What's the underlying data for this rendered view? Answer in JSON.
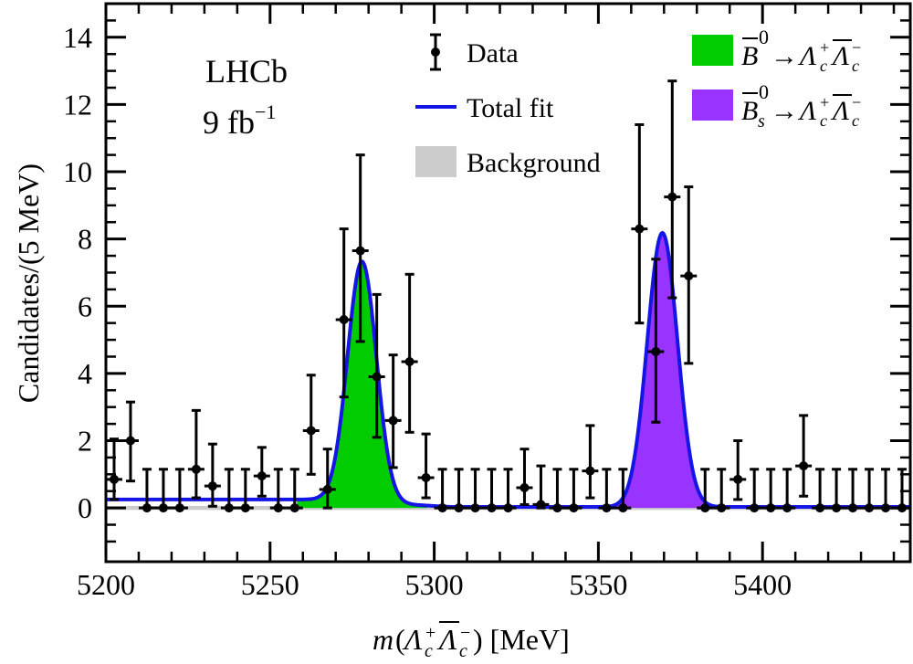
{
  "chart_data": {
    "type": "scatter",
    "experiment_label": "LHCb",
    "luminosity_label": {
      "value": "9 fb",
      "sup": "−1"
    },
    "xlabel": {
      "pre": "m(",
      "mid": "Λ",
      "post": ") [MeV]"
    },
    "ylabel": "Candidates/(5 MeV)",
    "xlim": [
      5200,
      5445
    ],
    "ylim": [
      -1.6,
      15
    ],
    "x_ticks": [
      5200,
      5250,
      5300,
      5350,
      5400
    ],
    "x_tick_labels": [
      "5200",
      "5250",
      "5300",
      "5350",
      "5400"
    ],
    "y_ticks": [
      0,
      2,
      4,
      6,
      8,
      10,
      12,
      14
    ],
    "y_tick_labels": [
      "0",
      "2",
      "4",
      "6",
      "8",
      "10",
      "12",
      "14"
    ],
    "bin_width": 5,
    "legend": {
      "data": "Data",
      "total_fit": "Total fit",
      "background": "Background",
      "b0": "B⁰→Λc⁺Λc⁻",
      "bs": "Bs⁰→Λc⁺Λc⁻"
    },
    "colors": {
      "total_fit": "#1515e6",
      "background": "#cccccc",
      "b0_signal": "#00cc00",
      "bs_signal": "#9933ff",
      "data": "#000000"
    },
    "data_points": {
      "x": [
        5202.5,
        5207.5,
        5212.5,
        5217.5,
        5222.5,
        5227.5,
        5232.5,
        5237.5,
        5242.5,
        5247.5,
        5252.5,
        5257.5,
        5262.5,
        5267.5,
        5272.5,
        5277.5,
        5282.5,
        5287.5,
        5292.5,
        5297.5,
        5302.5,
        5307.5,
        5312.5,
        5317.5,
        5322.5,
        5327.5,
        5332.5,
        5337.5,
        5342.5,
        5347.5,
        5352.5,
        5357.5,
        5362.5,
        5367.5,
        5372.5,
        5377.5,
        5382.5,
        5387.5,
        5392.5,
        5397.5,
        5402.5,
        5407.5,
        5412.5,
        5417.5,
        5422.5,
        5427.5,
        5432.5,
        5437.5,
        5442.5
      ],
      "y": [
        0.85,
        2.0,
        0,
        0,
        0,
        1.15,
        0.65,
        0,
        0,
        0.95,
        0,
        0,
        2.3,
        0.55,
        5.6,
        7.65,
        3.9,
        2.6,
        4.35,
        0.9,
        0,
        0,
        0,
        0,
        0,
        0.6,
        0.1,
        0,
        0,
        1.1,
        0,
        0,
        8.3,
        4.65,
        9.25,
        6.9,
        0,
        0,
        0.85,
        0,
        0,
        0,
        1.25,
        0,
        0,
        0,
        0,
        0,
        0
      ],
      "y_err_low": [
        0.6,
        1.2,
        0,
        0,
        0,
        0.85,
        0.6,
        0,
        0,
        0.6,
        0,
        0,
        1.3,
        0.55,
        2.3,
        2.7,
        1.8,
        1.4,
        2.1,
        0.6,
        0,
        0,
        0,
        0,
        0,
        0.5,
        0.1,
        0,
        0,
        0.8,
        0,
        0,
        2.8,
        2.1,
        3.0,
        2.6,
        0,
        0,
        0.6,
        0,
        0,
        0,
        0.9,
        0,
        0,
        0,
        0,
        0,
        0
      ],
      "y_err_high": [
        1.2,
        1.15,
        1.15,
        1.15,
        1.15,
        1.75,
        1.25,
        1.15,
        1.15,
        0.85,
        1.15,
        1.15,
        1.65,
        1.2,
        2.7,
        2.85,
        2.45,
        1.95,
        2.6,
        1.3,
        1.15,
        1.15,
        1.15,
        1.15,
        1.15,
        1.15,
        1.15,
        1.15,
        1.15,
        1.35,
        1.15,
        1.15,
        3.1,
        2.75,
        3.45,
        2.65,
        1.15,
        1.15,
        1.15,
        1.15,
        1.15,
        1.15,
        1.5,
        1.15,
        1.15,
        1.15,
        1.15,
        1.15,
        1.15
      ]
    },
    "fit_model": {
      "background_level": 0.03,
      "b0_peak": {
        "mean": 5278,
        "sigma": 4.4,
        "amplitude": 7.15
      },
      "bs_peak": {
        "mean": 5369.5,
        "sigma": 4.6,
        "amplitude": 8.15
      },
      "tail_level": 0.22
    }
  }
}
